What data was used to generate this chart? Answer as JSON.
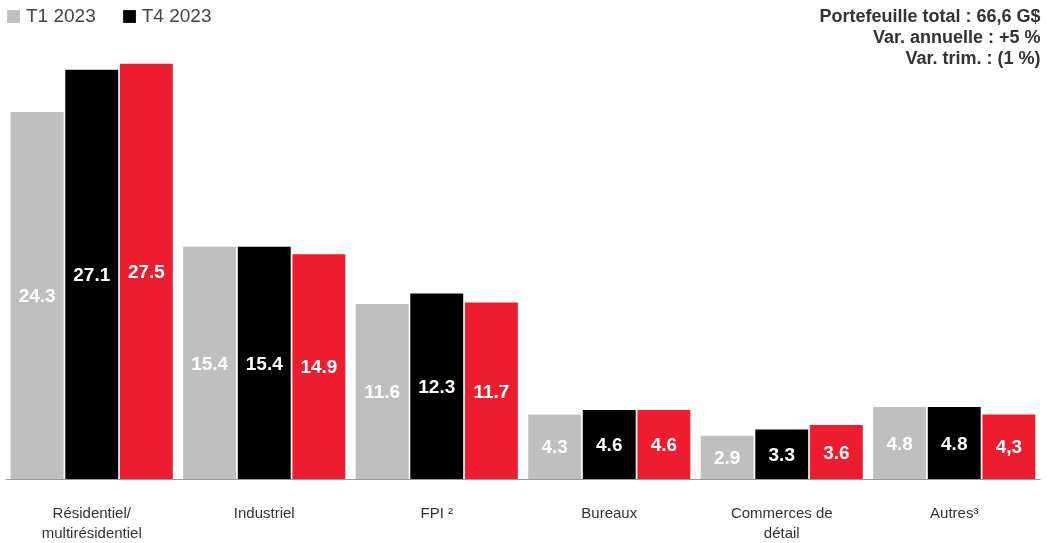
{
  "chart_data": {
    "type": "bar",
    "categories": [
      "Résidentiel/\nmultirésidentiel",
      "Industriel",
      "FPI ²",
      "Bureaux",
      "Commerces de\ndétail",
      "Autres³"
    ],
    "series": [
      {
        "name": "T1 2023",
        "color": "#bfbfbf",
        "values": [
          24.3,
          15.4,
          11.6,
          4.3,
          2.9,
          4.8
        ],
        "value_labels": [
          "24.3",
          "15.4",
          "11.6",
          "4.3",
          "2.9",
          "4.8"
        ]
      },
      {
        "name": "T4 2023",
        "color": "#000000",
        "values": [
          27.1,
          15.4,
          12.3,
          4.6,
          3.3,
          4.8
        ],
        "value_labels": [
          "27.1",
          "15.4",
          "12.3",
          "4.6",
          "3.3",
          "4.8"
        ]
      },
      {
        "color": "#ed1c2e",
        "values": [
          27.5,
          14.9,
          11.7,
          4.6,
          3.6,
          4.3
        ],
        "value_labels": [
          "27.5",
          "14.9",
          "11.7",
          "4.6",
          "3.6",
          "4,3"
        ]
      }
    ],
    "annotations": [
      "Portefeuille total : 66,6 G$",
      "Var. annuelle : +5 %",
      "Var. trim. : (1 %)"
    ],
    "tick_labels": "x",
    "grid": false,
    "legend": "top left"
  }
}
